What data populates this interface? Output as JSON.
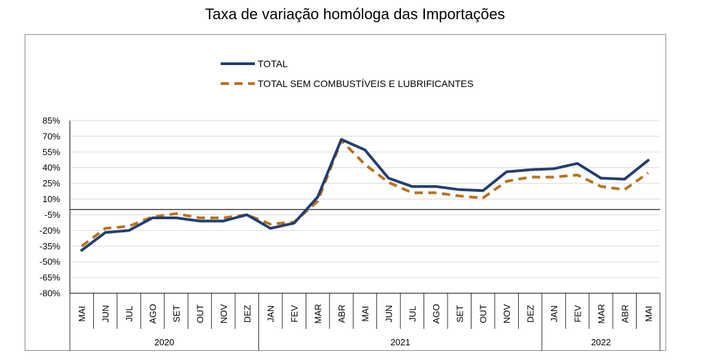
{
  "chart_data": {
    "type": "line",
    "title": "Taxa de variação homóloga das Importações",
    "xlabel": "",
    "ylabel": "",
    "ylim": [
      -80,
      85
    ],
    "yticks": [
      "85%",
      "70%",
      "55%",
      "40%",
      "25%",
      "10%",
      "-5%",
      "-20%",
      "-35%",
      "-50%",
      "-65%",
      "-80%"
    ],
    "ytick_values": [
      85,
      70,
      55,
      40,
      25,
      10,
      -5,
      -20,
      -35,
      -50,
      -65,
      -80
    ],
    "categories": [
      "MAI",
      "JUN",
      "JUL",
      "AGO",
      "SET",
      "OUT",
      "NOV",
      "DEZ",
      "JAN",
      "FEV",
      "MAR",
      "ABR",
      "MAI",
      "JUN",
      "JUL",
      "AGO",
      "SET",
      "OUT",
      "NOV",
      "DEZ",
      "JAN",
      "FEV",
      "MAR",
      "ABR",
      "MAI"
    ],
    "year_groups": [
      {
        "label": "2020",
        "count": 8
      },
      {
        "label": "2021",
        "count": 12
      },
      {
        "label": "2022",
        "count": 5
      }
    ],
    "grid": true,
    "legend_position": "top-center",
    "series": [
      {
        "name": "TOTAL",
        "color": "#243f6e",
        "style": "solid",
        "values": [
          -39,
          -22,
          -20,
          -8,
          -8,
          -11,
          -11,
          -5,
          -18,
          -13,
          12,
          67,
          57,
          30,
          22,
          22,
          19,
          18,
          36,
          38,
          39,
          44,
          30,
          29,
          47
        ]
      },
      {
        "name": "TOTAL SEM COMBUSTÍVEIS E LUBRIFICANTES",
        "color": "#b8731f",
        "style": "dashed",
        "values": [
          -35,
          -18,
          -16,
          -7,
          -4,
          -8,
          -8,
          -5,
          -14,
          -12,
          8,
          66,
          43,
          26,
          16,
          16,
          13,
          11,
          27,
          31,
          31,
          33,
          22,
          19,
          35
        ]
      }
    ]
  }
}
